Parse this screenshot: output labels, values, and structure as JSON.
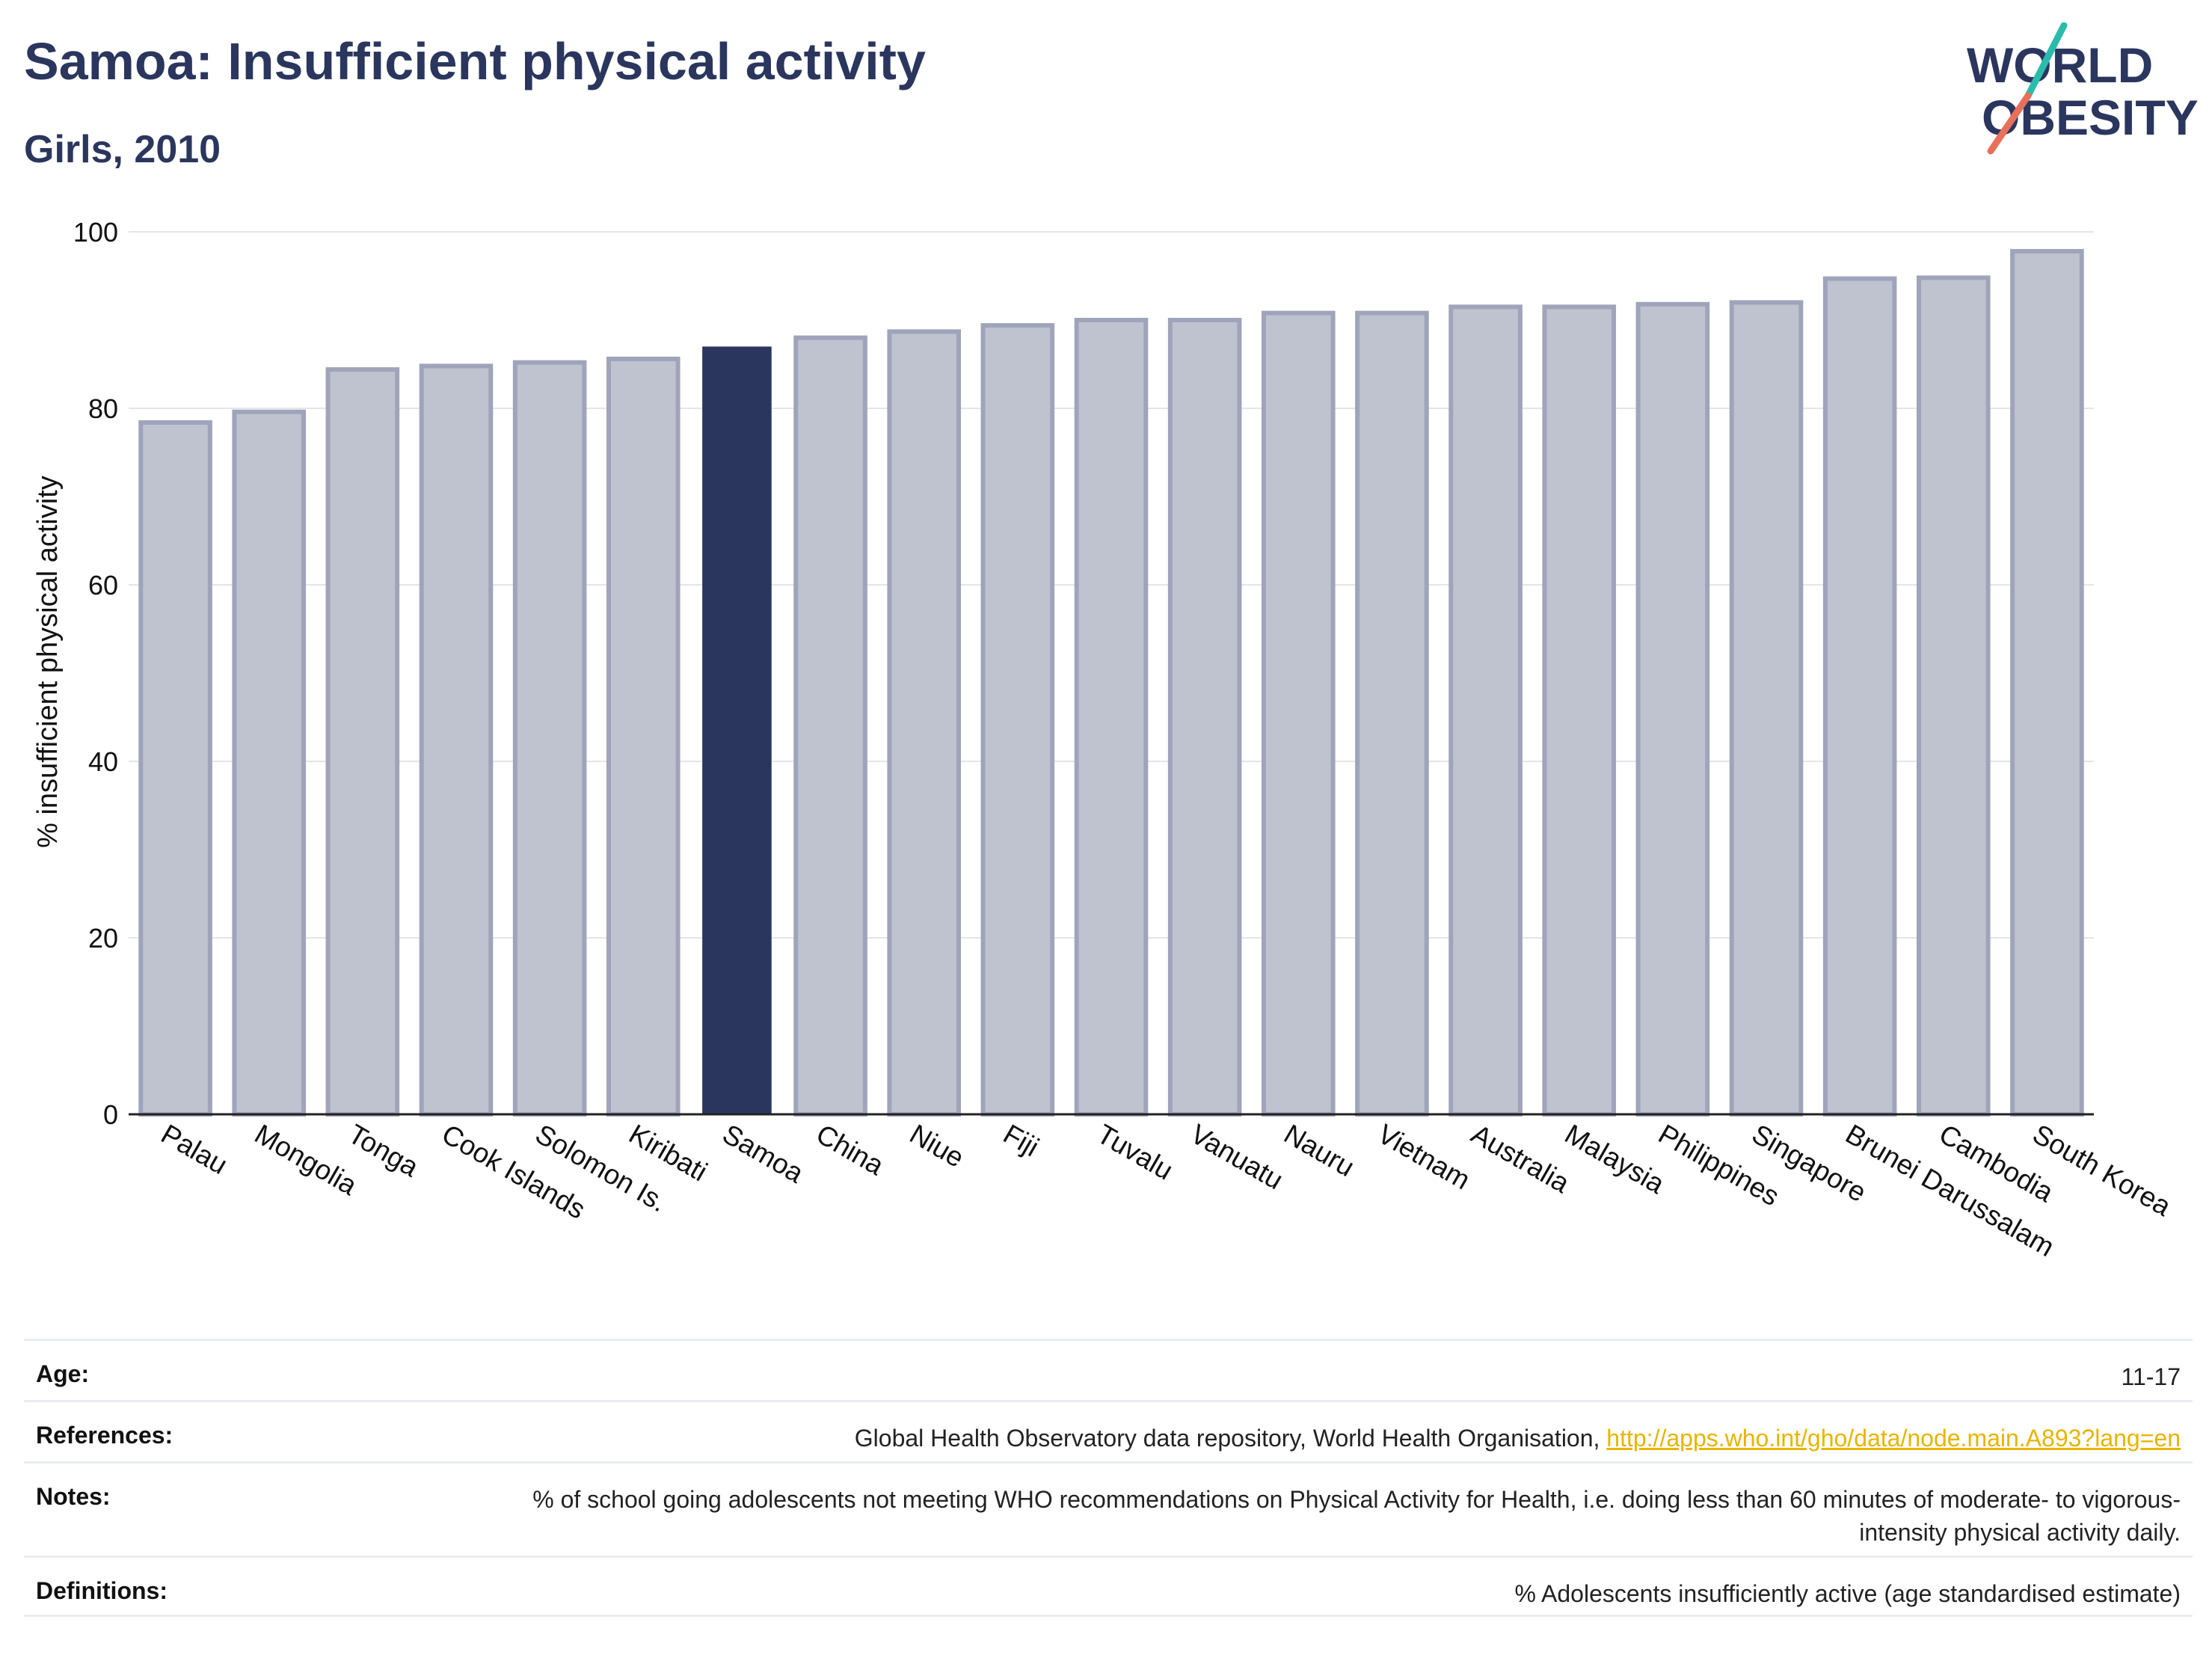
{
  "header": {
    "title": "Samoa: Insufficient physical activity",
    "subtitle": "Girls, 2010"
  },
  "logo": {
    "line1": "WORLD",
    "line2": "OBESITY"
  },
  "colors": {
    "highlight": "#2b365e",
    "bar": "#bfc2cf",
    "bar_border": "#9fa4ba",
    "link": "#e8b400",
    "logo_teal": "#2bbbad",
    "logo_coral": "#e8705a"
  },
  "chart_data": {
    "type": "bar",
    "title": "Samoa: Insufficient physical activity",
    "subtitle": "Girls, 2010",
    "ylabel": "% insufficient physical activity",
    "xlabel": "",
    "ylim": [
      0,
      100
    ],
    "yticks": [
      0,
      20,
      40,
      60,
      80,
      100
    ],
    "grid": true,
    "highlight": "Samoa",
    "categories": [
      "Palau",
      "Mongolia",
      "Tonga",
      "Cook Islands",
      "Solomon Is.",
      "Kiribati",
      "Samoa",
      "China",
      "Niue",
      "Fiji",
      "Tuvalu",
      "Vanuatu",
      "Nauru",
      "Vietnam",
      "Australia",
      "Malaysia",
      "Philippines",
      "Singapore",
      "Brunei Darussalam",
      "Cambodia",
      "South Korea"
    ],
    "values": [
      78.4,
      79.6,
      84.4,
      84.8,
      85.2,
      85.6,
      87.0,
      88.0,
      88.7,
      89.4,
      90.0,
      90.0,
      90.8,
      90.8,
      91.5,
      91.5,
      91.8,
      92.0,
      94.7,
      94.8,
      97.8
    ]
  },
  "info": {
    "age_label": "Age:",
    "age_value": "11-17",
    "references_label": "References:",
    "references_text": "Global Health Observatory data repository, World Health Organisation,",
    "references_link": "http://apps.who.int/gho/data/node.main.A893?lang=en",
    "notes_label": "Notes:",
    "notes_value": "% of school going adolescents not meeting WHO recommendations on Physical Activity for Health, i.e. doing less than 60 minutes of moderate- to vigorous-intensity physical activity daily.",
    "definitions_label": "Definitions:",
    "definitions_value": "% Adolescents insufficiently active (age standardised estimate)"
  }
}
